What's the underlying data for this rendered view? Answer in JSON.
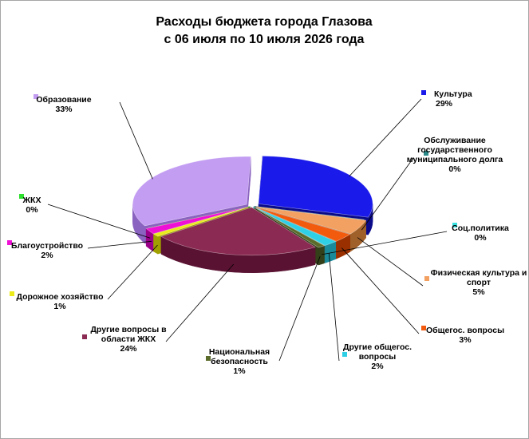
{
  "chart_data": {
    "type": "pie",
    "title_lines": [
      "Расходы бюджета города Глазова",
      "с 06 июля по 10 июля 2026 года"
    ],
    "slices": [
      {
        "name": "Культура",
        "value": 29,
        "percent": "29%",
        "color": "#1a1aea",
        "dark": "#0b0b8a",
        "name_lines": [
          "Культура"
        ]
      },
      {
        "name": "Обслуживание государственного муниципального долга",
        "value": 0.05,
        "percent": "0%",
        "color": "#2a8a8a",
        "dark": "#145050",
        "name_lines": [
          "Обслуживание",
          "государственного",
          "муниципального  долга"
        ]
      },
      {
        "name": "Физическая культура и спорт",
        "value": 5,
        "percent": "5%",
        "color": "#f3a162",
        "dark": "#a0602a",
        "name_lines": [
          "Физическая культура и",
          "спорт"
        ]
      },
      {
        "name": "Общегос. вопросы",
        "value": 3,
        "percent": "3%",
        "color": "#f25a0e",
        "dark": "#9a3000",
        "name_lines": [
          "Общегос. вопросы"
        ]
      },
      {
        "name": "Другие общегос. вопросы",
        "value": 2,
        "percent": "2%",
        "color": "#2fd0e6",
        "dark": "#1a8a9a",
        "name_lines": [
          "Другие общегос.",
          "вопросы"
        ]
      },
      {
        "name": "Соц.политика",
        "value": 0.05,
        "percent": "0%",
        "color": "#39e0e0",
        "dark": "#1a9a9a",
        "name_lines": [
          "Соц.политика"
        ]
      },
      {
        "name": "Национальная безопасность",
        "value": 1,
        "percent": "1%",
        "color": "#5a6b2a",
        "dark": "#33401a",
        "name_lines": [
          "Национальная",
          "безопасность"
        ]
      },
      {
        "name": "Другие вопросы в области ЖКХ",
        "value": 24,
        "percent": "24%",
        "color": "#8b2a52",
        "dark": "#5a1232",
        "name_lines": [
          "Другие вопросы в",
          "области ЖКХ"
        ]
      },
      {
        "name": "Дорожное хозяйство",
        "value": 1,
        "percent": "1%",
        "color": "#ecec1a",
        "dark": "#a0a000",
        "name_lines": [
          "Дорожное хозяйство"
        ]
      },
      {
        "name": "Благоустройство",
        "value": 2,
        "percent": "2%",
        "color": "#ef10d6",
        "dark": "#9a0088",
        "name_lines": [
          "Благоустройство"
        ]
      },
      {
        "name": "ЖКХ",
        "value": 0.05,
        "percent": "0%",
        "color": "#2ee02e",
        "dark": "#1a901a",
        "name_lines": [
          "ЖКХ"
        ]
      },
      {
        "name": "Образование",
        "value": 33,
        "percent": "33%",
        "color": "#c39df2",
        "dark": "#8a62c0",
        "name_lines": [
          "Образование"
        ]
      }
    ],
    "legend": "none",
    "grid": false,
    "style": "3d-exploded"
  }
}
